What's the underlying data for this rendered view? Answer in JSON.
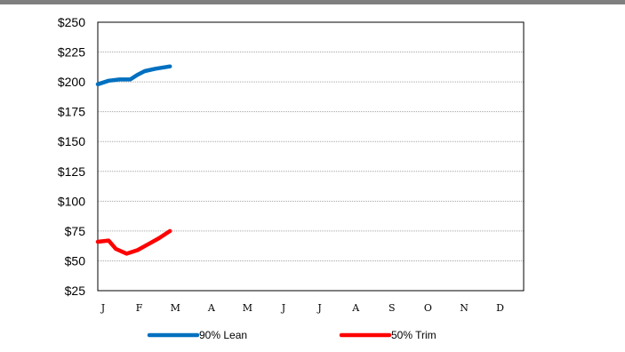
{
  "chart_data": {
    "type": "line",
    "title": "",
    "xlabel": "",
    "ylabel": "",
    "months": [
      "J",
      "F",
      "M",
      "A",
      "M",
      "J",
      "J",
      "A",
      "S",
      "O",
      "N",
      "D"
    ],
    "yticks": [
      "$250",
      "$225",
      "$200",
      "$175",
      "$150",
      "$125",
      "$100",
      "$75",
      "$50",
      "$25"
    ],
    "ylim": [
      25,
      250
    ],
    "grid": true,
    "legend_position": "bottom",
    "series": [
      {
        "name": "90% Lean",
        "color": "#0070c0",
        "x": [
          0,
          0.3,
          0.6,
          0.9,
          1.1,
          1.3,
          1.6,
          2.0
        ],
        "y": [
          198,
          201,
          202,
          202,
          206,
          209,
          211,
          213
        ]
      },
      {
        "name": "50% Trim",
        "color": "#ff0000",
        "x": [
          0,
          0.3,
          0.5,
          0.8,
          1.1,
          1.4,
          1.7,
          2.0
        ],
        "y": [
          66,
          67,
          60,
          56,
          59,
          64,
          69,
          75
        ]
      }
    ]
  }
}
